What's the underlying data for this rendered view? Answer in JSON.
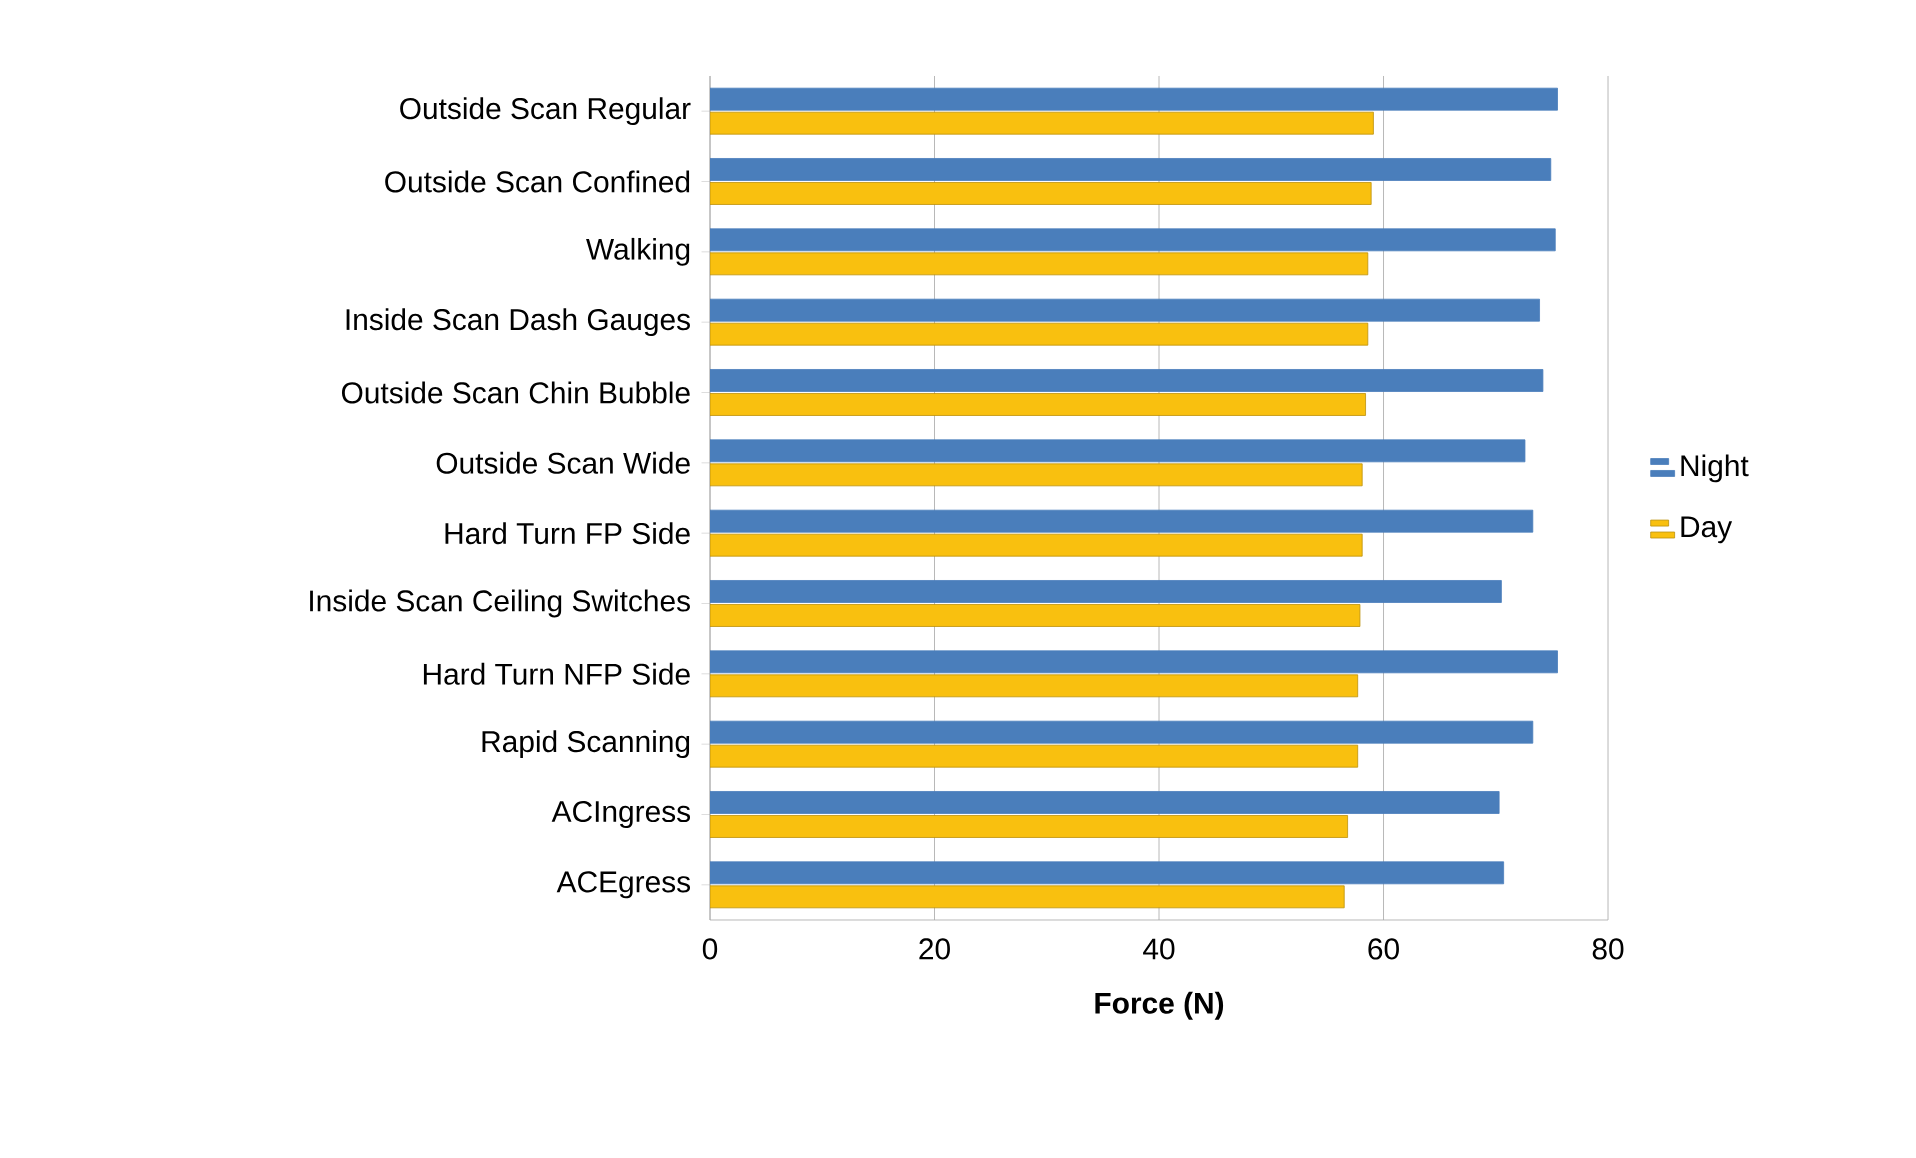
{
  "chart_data": {
    "type": "bar",
    "orientation": "horizontal",
    "categories": [
      "Outside Scan Regular",
      "Outside Scan Confined",
      "Walking",
      "Inside Scan Dash Gauges",
      "Outside Scan Chin Bubble",
      "Outside Scan Wide",
      "Hard Turn FP Side",
      "Inside Scan Ceiling Switches",
      "Hard Turn NFP Side",
      "Rapid Scanning",
      "ACIngress",
      "ACEgress"
    ],
    "series": [
      {
        "name": "Night",
        "color": "#4a7ebb",
        "values": [
          75.5,
          74.9,
          75.3,
          73.9,
          74.2,
          72.6,
          73.3,
          70.5,
          75.5,
          73.3,
          70.3,
          70.7
        ]
      },
      {
        "name": "Day",
        "color": "#f9c00f",
        "values": [
          59.1,
          58.9,
          58.6,
          58.6,
          58.4,
          58.1,
          58.1,
          57.9,
          57.7,
          57.7,
          56.8,
          56.5
        ]
      }
    ],
    "xlabel": "Force (N)",
    "xlim": [
      0,
      80
    ],
    "xticks": [
      0,
      20,
      40,
      60,
      80
    ],
    "grid": "x",
    "legend": "right"
  }
}
